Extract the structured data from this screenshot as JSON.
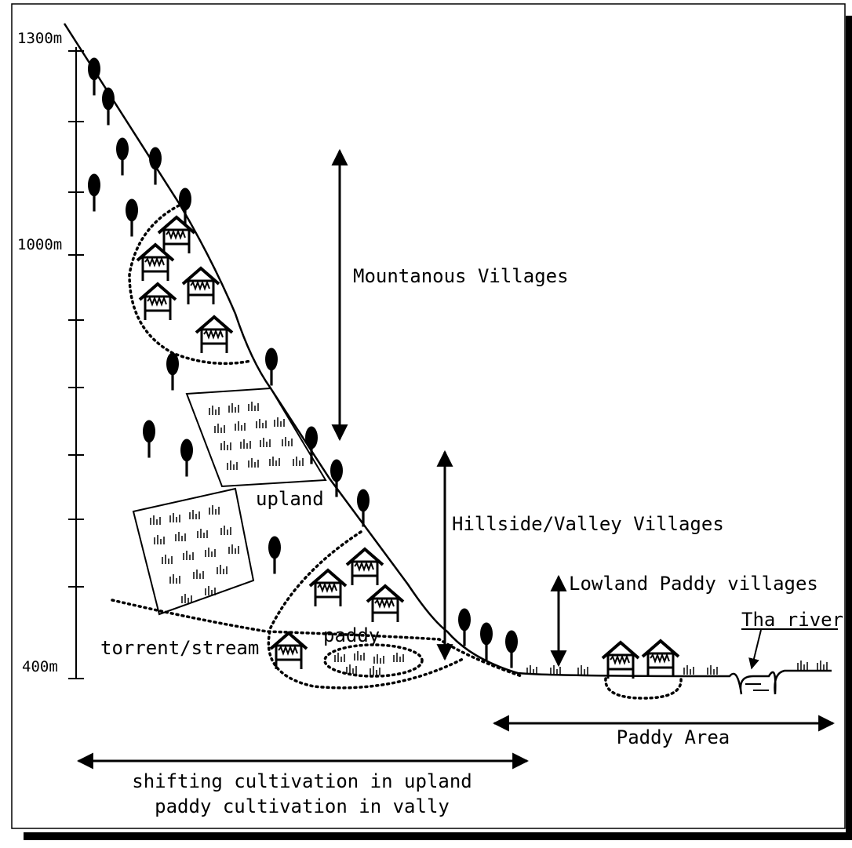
{
  "axis": {
    "labels": [
      "1300m",
      "1000m",
      "400m"
    ]
  },
  "zones": {
    "mountain": "Mountanous Villages",
    "hillside": "Hillside/Valley Villages",
    "lowland": "Lowland Paddy villages",
    "river": "Tha river"
  },
  "features": {
    "upland": "upland",
    "paddy": "paddy",
    "stream": "torrent/stream"
  },
  "areas": {
    "paddy_area": "Paddy Area",
    "shifting": [
      "shifting cultivation in upland",
      "paddy cultivation in vally"
    ]
  }
}
